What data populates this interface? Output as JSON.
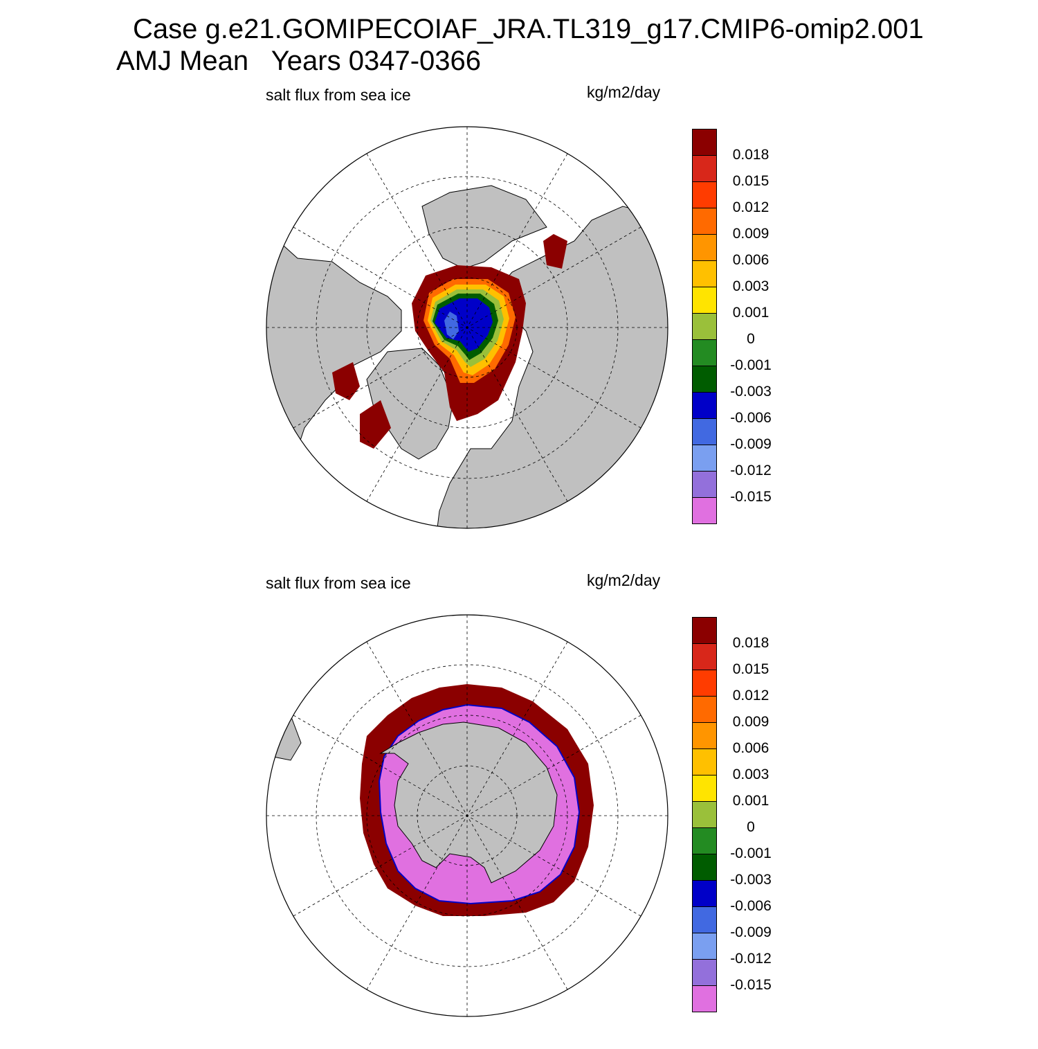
{
  "header": {
    "title_line1": "Case g.e21.GOMIPECOIAF_JRA.TL319_g17.CMIP6-omip2.001",
    "title_line2": "AMJ Mean   Years 0347-0366"
  },
  "panels": [
    {
      "id": "north",
      "variable_label": "salt flux from sea ice",
      "units_label": "kg/m2/day",
      "hemisphere": "Northern Hemisphere polar stereographic"
    },
    {
      "id": "south",
      "variable_label": "salt flux from sea ice",
      "units_label": "kg/m2/day",
      "hemisphere": "Southern Hemisphere polar stereographic"
    }
  ],
  "colorbar": {
    "labels": [
      "0.018",
      "0.015",
      "0.012",
      "0.009",
      "0.006",
      "0.003",
      "0.001",
      "0",
      "-0.001",
      "-0.003",
      "-0.006",
      "-0.009",
      "-0.012",
      "-0.015"
    ],
    "colors": [
      "#8b0000",
      "#d8271a",
      "#ff3c00",
      "#ff6a00",
      "#ff9500",
      "#ffc000",
      "#ffe400",
      "#9ac03a",
      "#238b22",
      "#005c00",
      "#0000c8",
      "#4169e1",
      "#7a9ff0",
      "#9370db",
      "#e070e0"
    ]
  },
  "map_colors": {
    "land": "#c0c0c0",
    "ocean_no_data": "#ffffff",
    "gridlines": "#000000"
  }
}
